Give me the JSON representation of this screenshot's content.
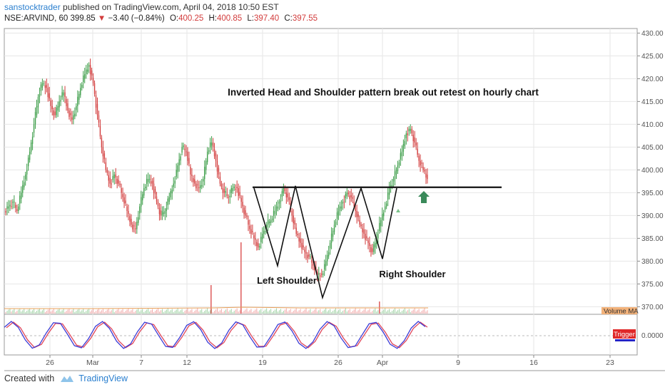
{
  "header": {
    "author": "sanstocktrader",
    "published_text": "published on TradingView.com, April 04, 2018 10:50 EST",
    "symbol": "NSE:ARVIND, 60",
    "last": "399.85",
    "change": "−3.40 (−0.84%)",
    "open_label": "O:",
    "open": "400.25",
    "high_label": "H:",
    "high": "400.85",
    "low_label": "L:",
    "low": "397.40",
    "close_label": "C:",
    "close": "397.55"
  },
  "footer": {
    "created_with": "Created with",
    "brand": "TradingView"
  },
  "colors": {
    "up": "#3e9e4a",
    "down": "#d23c3c",
    "grid": "#e6e6e6",
    "stoch_k": "#3b3bd6",
    "stoch_d": "#e0465a",
    "volume_ma": "#e8a05a"
  },
  "chart_data": [
    {
      "type": "candlestick",
      "title": "",
      "annotation_title": "Inverted Head and Shoulder pattern break out retest  on hourly chart",
      "annotations": [
        "Left Shoulder",
        "Right Shoulder"
      ],
      "y_ticks": [
        "430.00",
        "425.00",
        "420.00",
        "415.00",
        "410.00",
        "405.00",
        "400.00",
        "395.00",
        "390.00",
        "385.00",
        "380.00",
        "375.00",
        "370.00"
      ],
      "ylim": [
        368.5,
        431
      ],
      "x_ticks": [
        "26",
        "Mar",
        "7",
        "12",
        "19",
        "26",
        "Apr",
        "9",
        "16",
        "23"
      ],
      "neckline_level": 396.2,
      "pattern_points": [
        396,
        379,
        396.5,
        372,
        396,
        380.5,
        396
      ],
      "close_path": [
        392,
        393,
        391,
        395,
        399,
        404,
        410,
        416,
        419,
        418,
        414,
        412,
        415,
        417,
        413,
        411,
        414,
        418,
        421,
        423,
        419,
        412,
        405,
        400,
        397,
        399,
        397,
        394,
        391,
        388,
        387,
        392,
        396,
        398,
        397,
        393,
        390,
        391,
        394,
        397,
        401,
        405,
        404,
        399,
        397,
        396,
        398,
        404,
        406,
        402,
        397,
        395,
        394,
        396,
        396,
        393,
        390,
        387,
        385,
        383,
        386,
        388,
        389,
        391,
        393,
        396,
        394,
        390,
        386,
        384,
        382,
        381,
        379,
        377,
        377,
        380,
        384,
        388,
        391,
        393,
        395,
        394,
        391,
        388,
        386,
        384,
        382,
        385,
        389,
        392,
        396,
        398,
        401,
        404,
        408,
        409,
        406,
        402,
        400,
        398
      ],
      "volume_label": "Volume MA",
      "volume_spikes": [
        {
          "at": "Mar 15",
          "level": "high"
        },
        {
          "at": "Mar 16",
          "level": "very high"
        },
        {
          "at": "Mar 29",
          "level": "medium"
        }
      ],
      "stochastic": {
        "label": "Trigger",
        "value": "0.0000"
      }
    }
  ]
}
